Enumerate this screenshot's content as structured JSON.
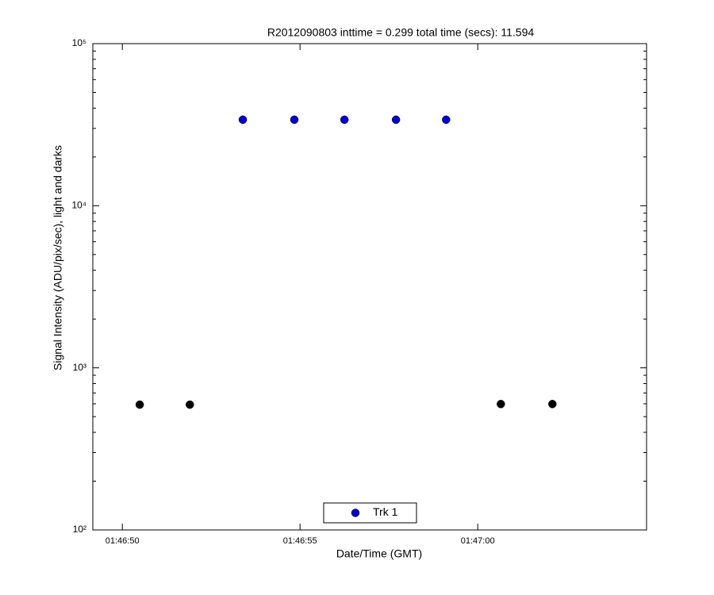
{
  "chart_data": {
    "type": "scatter",
    "title": "R2012090803 inttime = 0.299 total time (secs): 11.594",
    "x_label": "Date/Time (GMT)",
    "y_label": "Signal Intensity (ADU/pix/sec), light and darks",
    "series": [
      {
        "name": "Trk 1",
        "color": "#0000cc",
        "x": [
          6413.39,
          6414.84,
          6416.25,
          6417.7,
          6419.11
        ],
        "values": [
          33950,
          33950,
          33950,
          33950,
          33950
        ]
      },
      {
        "color": "#000000",
        "x": [
          6410.49,
          6411.9,
          6420.65,
          6422.1
        ],
        "values": [
          593,
          593,
          598,
          598
        ]
      }
    ],
    "xlim": [
      6409.17,
      6424.75
    ],
    "xticks": [
      {
        "value": 6410,
        "label": "01:46:50"
      },
      {
        "value": 6415,
        "label": "01:46:55"
      },
      {
        "value": 6420,
        "label": "01:47:00"
      }
    ],
    "ylim": [
      100,
      100000
    ],
    "yscale": "log",
    "yticks": [
      {
        "value": 100,
        "label": "10²"
      },
      {
        "value": 1000,
        "label": "10³"
      },
      {
        "value": 10000,
        "label": "10⁴"
      },
      {
        "value": 100000,
        "label": "10⁵"
      }
    ],
    "legend": "bottom"
  }
}
